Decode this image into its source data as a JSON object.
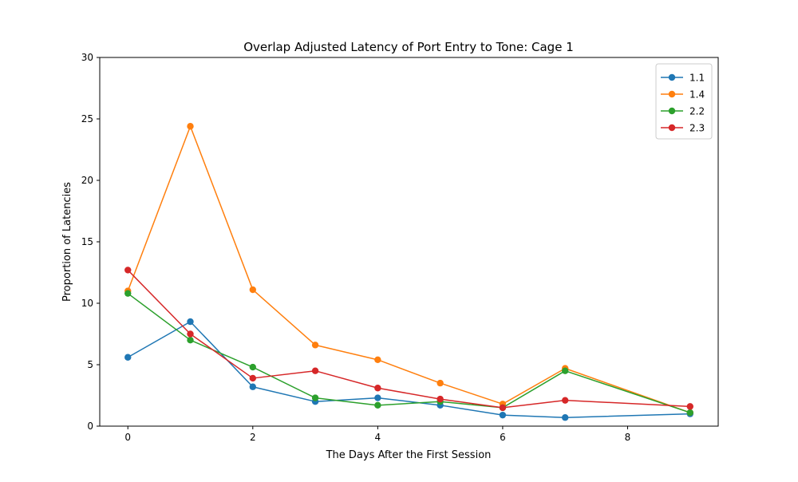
{
  "chart_data": {
    "type": "line",
    "title": "Overlap Adjusted Latency of Port Entry to Tone: Cage 1",
    "xlabel": "The Days After the First Session",
    "ylabel": "Proportion of Latencies",
    "xlim": [
      -0.45,
      9.45
    ],
    "ylim": [
      0,
      30
    ],
    "xticks": [
      0,
      2,
      4,
      6,
      8
    ],
    "yticks": [
      0,
      5,
      10,
      15,
      20,
      25,
      30
    ],
    "grid": false,
    "legend_position": "top-right",
    "series": [
      {
        "name": "1.1",
        "color": "#1f77b4",
        "x": [
          0,
          1,
          2,
          3,
          4,
          5,
          6,
          7,
          9
        ],
        "y": [
          5.6,
          8.5,
          3.2,
          2.0,
          2.3,
          1.7,
          0.9,
          0.7,
          1.0
        ]
      },
      {
        "name": "1.4",
        "color": "#ff7f0e",
        "x": [
          0,
          1,
          2,
          3,
          4,
          5,
          6,
          7,
          9
        ],
        "y": [
          11.0,
          24.4,
          11.1,
          6.6,
          5.4,
          3.5,
          1.8,
          4.7,
          1.1
        ]
      },
      {
        "name": "2.2",
        "color": "#2ca02c",
        "x": [
          0,
          1,
          2,
          3,
          4,
          5,
          6,
          7,
          9
        ],
        "y": [
          10.8,
          7.0,
          4.8,
          2.3,
          1.7,
          2.0,
          1.5,
          4.5,
          1.1
        ]
      },
      {
        "name": "2.3",
        "color": "#d62728",
        "x": [
          0,
          1,
          2,
          3,
          4,
          5,
          6,
          7,
          9
        ],
        "y": [
          12.7,
          7.5,
          3.9,
          4.5,
          3.1,
          2.2,
          1.5,
          2.1,
          1.6
        ]
      }
    ]
  }
}
